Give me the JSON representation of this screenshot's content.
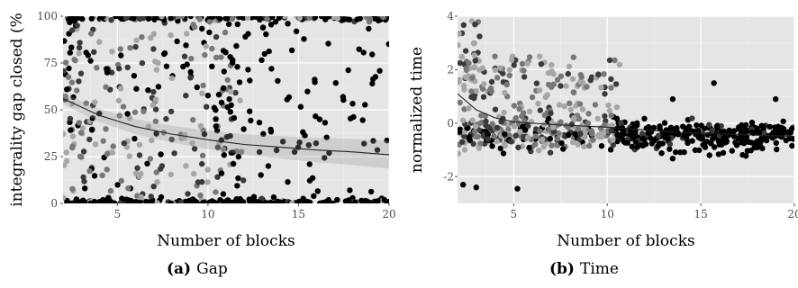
{
  "chart_data": [
    {
      "type": "scatter",
      "panel_label": "(a)",
      "caption": "Gap",
      "xlabel": "Number of blocks",
      "ylabel": "integrality gap closed (%",
      "xlim": [
        2,
        20
      ],
      "ylim": [
        0,
        100
      ],
      "x_ticks": [
        5,
        10,
        15,
        20
      ],
      "y_ticks": [
        0,
        25,
        50,
        75,
        100
      ],
      "grid": true,
      "background": "#e5e5e5",
      "point_colors": [
        "#000000",
        "#3a3a3a",
        "#777777",
        "#a6a6a6"
      ],
      "trend": {
        "x": [
          2,
          4,
          6,
          8,
          10,
          12,
          14,
          16,
          18,
          20
        ],
        "y": [
          56,
          47,
          41,
          37,
          34,
          31.5,
          30,
          28.5,
          27.5,
          26
        ]
      }
    },
    {
      "type": "scatter",
      "panel_label": "(b)",
      "caption": "Time",
      "xlabel": "Number of blocks",
      "ylabel": "normalized time",
      "xlim": [
        2,
        20
      ],
      "ylim": [
        -3,
        4
      ],
      "x_ticks": [
        5,
        10,
        15,
        20
      ],
      "y_ticks": [
        -2,
        0,
        2,
        4
      ],
      "grid": true,
      "background": "#e5e5e5",
      "point_colors": [
        "#000000",
        "#3a3a3a",
        "#777777",
        "#a6a6a6"
      ],
      "trend": {
        "x": [
          2,
          3,
          4,
          5,
          7,
          10,
          14,
          20
        ],
        "y": [
          1.1,
          0.5,
          0.2,
          0.05,
          -0.05,
          -0.15,
          -0.35,
          -0.5
        ]
      },
      "outliers": [
        [
          2.3,
          -2.3
        ],
        [
          3.0,
          -2.4
        ],
        [
          5.2,
          -2.45
        ],
        [
          15.7,
          1.5
        ],
        [
          13.5,
          0.9
        ],
        [
          19.0,
          0.9
        ]
      ]
    }
  ]
}
